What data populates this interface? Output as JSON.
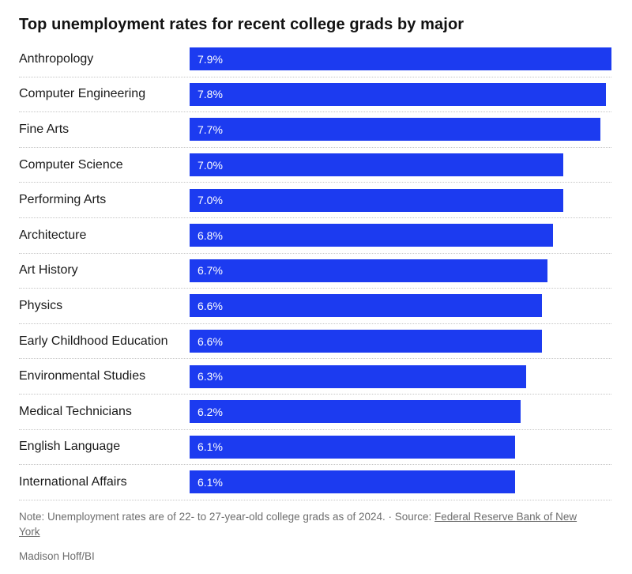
{
  "title": "Top unemployment rates for recent college grads by major",
  "chart_data": {
    "type": "bar",
    "orientation": "horizontal",
    "title": "Top unemployment rates for recent college grads by major",
    "categories": [
      "Anthropology",
      "Computer Engineering",
      "Fine Arts",
      "Computer Science",
      "Performing Arts",
      "Architecture",
      "Art History",
      "Physics",
      "Early Childhood Education",
      "Environmental Studies",
      "Medical Technicians",
      "English Language",
      "International Affairs"
    ],
    "values": [
      7.9,
      7.8,
      7.7,
      7.0,
      7.0,
      6.8,
      6.7,
      6.6,
      6.6,
      6.3,
      6.2,
      6.1,
      6.1
    ],
    "value_suffix": "%",
    "xlim": [
      0,
      7.9
    ],
    "bar_color": "#1c3bf0",
    "grid": "dotted row separators",
    "legend": "none",
    "value_labels_position": "inside-left"
  },
  "note": {
    "prefix": "Note: Unemployment rates are of 22- to 27-year-old college grads as of 2024. · Source: ",
    "link_text": "Federal Reserve Bank of New York"
  },
  "credit": "Madison Hoff/BI"
}
